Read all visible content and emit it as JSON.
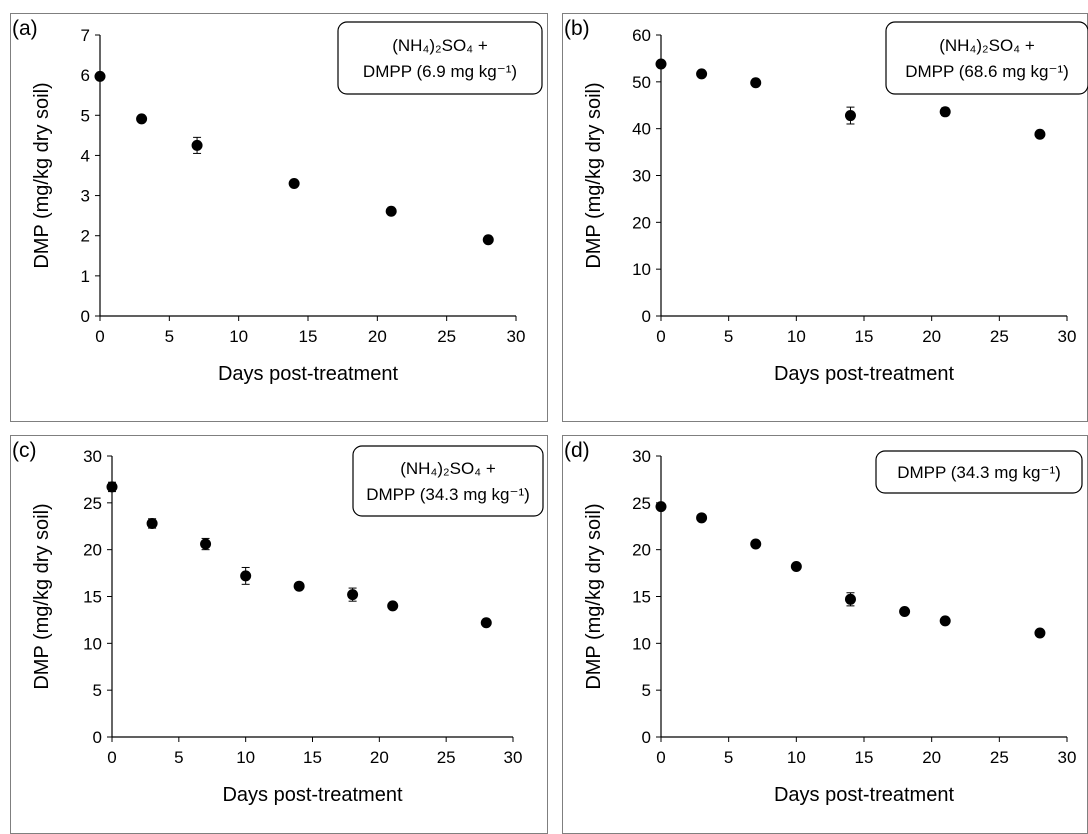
{
  "figure": {
    "panels": [
      {
        "label": "(a)",
        "legend": [
          "(NH₄)₂SO₄ +",
          "DMPP (6.9 mg kg⁻¹)"
        ]
      },
      {
        "label": "(b)",
        "legend": [
          "(NH₄)₂SO₄ +",
          "DMPP (68.6 mg kg⁻¹)"
        ]
      },
      {
        "label": "(c)",
        "legend": [
          "(NH₄)₂SO₄ +",
          "DMPP (34.3 mg kg⁻¹)"
        ]
      },
      {
        "label": "(d)",
        "legend": [
          "DMPP (34.3 mg kg⁻¹)"
        ]
      }
    ]
  },
  "chart_data": [
    {
      "type": "scatter",
      "panel": "(a)",
      "xlabel": "Days post-treatment",
      "ylabel": "DMP (mg/kg dry soil)",
      "xlim": [
        0,
        30
      ],
      "ylim": [
        0,
        7
      ],
      "xticks": [
        0,
        5,
        10,
        15,
        20,
        25,
        30
      ],
      "yticks": [
        0,
        1,
        2,
        3,
        4,
        5,
        6,
        7
      ],
      "grid": false,
      "x": [
        0,
        3,
        7,
        14,
        21,
        28
      ],
      "y": [
        5.97,
        4.91,
        4.25,
        3.3,
        2.61,
        1.9
      ],
      "error": [
        0.05,
        0.06,
        0.2,
        0.05,
        0.04,
        0.05
      ]
    },
    {
      "type": "scatter",
      "panel": "(b)",
      "xlabel": "Days post-treatment",
      "ylabel": "DMP (mg/kg dry soil)",
      "xlim": [
        0,
        30
      ],
      "ylim": [
        0,
        60
      ],
      "xticks": [
        0,
        5,
        10,
        15,
        20,
        25,
        30
      ],
      "yticks": [
        0,
        10,
        20,
        30,
        40,
        50,
        60
      ],
      "grid": false,
      "x": [
        0,
        3,
        7,
        14,
        21,
        28
      ],
      "y": [
        53.8,
        51.7,
        49.8,
        42.8,
        43.6,
        38.8
      ],
      "error": [
        0.5,
        0.5,
        0.5,
        1.8,
        0.8,
        0.5
      ]
    },
    {
      "type": "scatter",
      "panel": "(c)",
      "xlabel": "Days post-treatment",
      "ylabel": "DMP (mg/kg dry soil)",
      "xlim": [
        0,
        30
      ],
      "ylim": [
        0,
        30
      ],
      "xticks": [
        0,
        5,
        10,
        15,
        20,
        25,
        30
      ],
      "yticks": [
        0,
        5,
        10,
        15,
        20,
        25,
        30
      ],
      "grid": false,
      "x": [
        0,
        3,
        7,
        10,
        14,
        18,
        21,
        28
      ],
      "y": [
        26.7,
        22.8,
        20.6,
        17.2,
        16.1,
        15.2,
        14.0,
        12.2
      ],
      "error": [
        0.5,
        0.5,
        0.6,
        0.9,
        0.3,
        0.7,
        0.3,
        0.3
      ]
    },
    {
      "type": "scatter",
      "panel": "(d)",
      "xlabel": "Days post-treatment",
      "ylabel": "DMP (mg/kg dry soil)",
      "xlim": [
        0,
        30
      ],
      "ylim": [
        0,
        30
      ],
      "xticks": [
        0,
        5,
        10,
        15,
        20,
        25,
        30
      ],
      "yticks": [
        0,
        5,
        10,
        15,
        20,
        25,
        30
      ],
      "grid": false,
      "x": [
        0,
        3,
        7,
        10,
        14,
        18,
        21,
        28
      ],
      "y": [
        24.6,
        23.4,
        20.6,
        18.2,
        14.7,
        13.4,
        12.4,
        11.1
      ],
      "error": [
        0.3,
        0.3,
        0.3,
        0.3,
        0.7,
        0.3,
        0.3,
        0.3
      ]
    }
  ]
}
